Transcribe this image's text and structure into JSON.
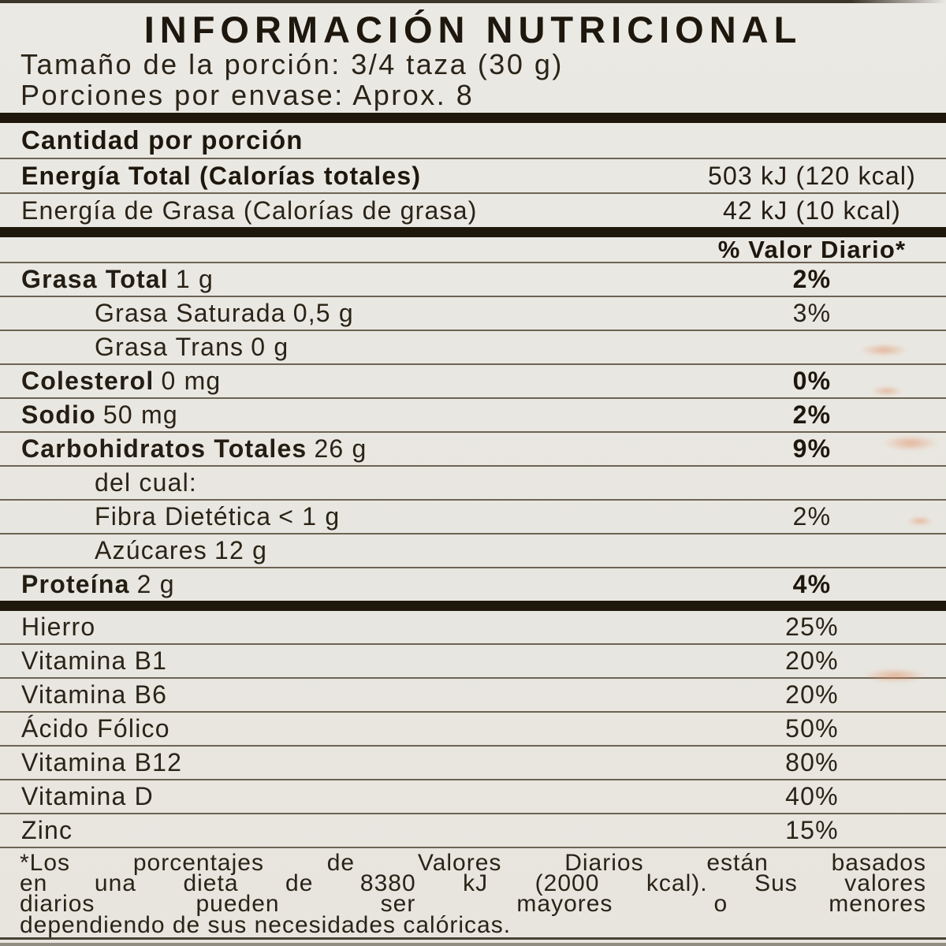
{
  "header": {
    "title": "INFORMACIÓN NUTRICIONAL",
    "serving_size": "Tamaño de la porción: 3/4 taza (30 g)",
    "servings_per_container": "Porciones por envase: Aprox. 8"
  },
  "sections": {
    "amount_per_serving": "Cantidad por porción",
    "daily_value_header": "% Valor Diario*"
  },
  "energy_rows": [
    {
      "label": "Energía Total (Calorías totales)",
      "value": "503 kJ (120 kcal)",
      "label_bold": true
    },
    {
      "label": "Energía de Grasa (Calorías de grasa)",
      "value": "42 kJ (10 kcal)",
      "label_bold": false
    }
  ],
  "nutrient_rows": [
    {
      "name": "Grasa Total",
      "amount": "1 g",
      "value": "2%",
      "name_bold": true,
      "value_bold": true,
      "indent": false
    },
    {
      "name": "Grasa Saturada",
      "amount": "0,5 g",
      "value": "3%",
      "name_bold": false,
      "value_bold": false,
      "indent": true
    },
    {
      "name": "Grasa Trans",
      "amount": "0 g",
      "value": "",
      "name_bold": false,
      "value_bold": false,
      "indent": true
    },
    {
      "name": "Colesterol",
      "amount": "0 mg",
      "value": "0%",
      "name_bold": true,
      "value_bold": true,
      "indent": false
    },
    {
      "name": "Sodio",
      "amount": "50 mg",
      "value": "2%",
      "name_bold": true,
      "value_bold": true,
      "indent": false
    },
    {
      "name": "Carbohidratos Totales",
      "amount": "26 g",
      "value": "9%",
      "name_bold": true,
      "value_bold": true,
      "indent": false
    },
    {
      "name": "del cual:",
      "amount": "",
      "value": "",
      "name_bold": false,
      "value_bold": false,
      "indent": true
    },
    {
      "name": "Fibra Dietética",
      "amount": "< 1 g",
      "value": "2%",
      "name_bold": false,
      "value_bold": false,
      "indent": true
    },
    {
      "name": "Azúcares",
      "amount": "12 g",
      "value": "",
      "name_bold": false,
      "value_bold": false,
      "indent": true
    },
    {
      "name": "Proteína",
      "amount": "2 g",
      "value": "4%",
      "name_bold": true,
      "value_bold": true,
      "indent": false
    }
  ],
  "micronutrient_rows": [
    {
      "name": "Hierro",
      "value": "25%"
    },
    {
      "name": "Vitamina B1",
      "value": "20%"
    },
    {
      "name": "Vitamina B6",
      "value": "20%"
    },
    {
      "name": "Ácido Fólico",
      "value": "50%"
    },
    {
      "name": "Vitamina B12",
      "value": "80%"
    },
    {
      "name": "Vitamina D",
      "value": "40%"
    },
    {
      "name": "Zinc",
      "value": "15%"
    }
  ],
  "footnote": {
    "full_text": "*Los porcentajes de Valores Diarios están basados en una dieta de 8380 kJ (2000 kcal). Sus valores diarios pueden ser mayores o menores dependiendo de sus necesidades calóricas.",
    "lines": [
      "*Los porcentajes de Valores Diarios están basados",
      "en una dieta de 8380 kJ (2000 kcal). Sus valores",
      "diarios pueden ser mayores o menores",
      "dependiendo de sus necesidades calóricas."
    ]
  },
  "colors": {
    "background": "#e9e7e1",
    "text": "#241d13",
    "rule": "#6c6454",
    "bar": "#20170c",
    "stain": "#e08a5e"
  }
}
